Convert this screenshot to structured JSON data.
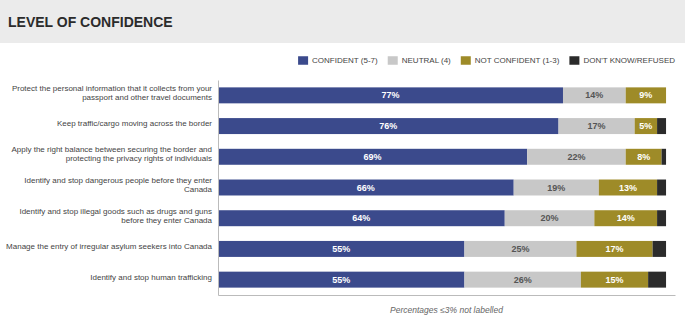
{
  "chart_data": {
    "type": "bar",
    "orientation": "horizontal",
    "stacked": true,
    "data_labels": true,
    "tick_labels": "y",
    "legend": "top-right",
    "title": "LEVEL OF CONFIDENCE",
    "categories": [
      "Protect the personal information  that it collects from your\npassport and other travel documents",
      "Keep traffic/cargo moving across the border",
      "Apply the right balance between securing the border and\nprotecting the privacy rights of individuals",
      "Identify and stop dangerous people before they enter\nCanada",
      "Identify and stop illegal goods such as drugs and guns\nbefore they enter Canada",
      "Manage the entry of irregular asylum seekers into Canada",
      "Identify and stop human trafficking"
    ],
    "series": [
      {
        "name": "CONFIDENT (5-7)",
        "color": "#3B4A8C",
        "values": [
          77,
          76,
          69,
          66,
          64,
          55,
          55
        ],
        "value_labels": [
          "77%",
          "76%",
          "69%",
          "66%",
          "64%",
          "55%",
          "55%"
        ]
      },
      {
        "name": "NEUTRAL (4)",
        "color": "#C8C8C8",
        "values": [
          14,
          17,
          22,
          19,
          20,
          25,
          26
        ],
        "value_labels": [
          "14%",
          "17%",
          "22%",
          "19%",
          "20%",
          "25%",
          "26%"
        ]
      },
      {
        "name": "NOT CONFIDENT (1-3)",
        "color": "#9E8B28",
        "values": [
          9,
          5,
          8,
          13,
          14,
          17,
          15
        ],
        "value_labels": [
          "9%",
          "5%",
          "8%",
          "13%",
          "14%",
          "17%",
          "15%"
        ]
      },
      {
        "name": "DON'T KNOW/REFUSED",
        "color": "#2B2B2B",
        "values": [
          0,
          2,
          1,
          2,
          2,
          3,
          4
        ]
      }
    ],
    "xlim": [
      0,
      102
    ],
    "annotations": [
      "Percentages ≤3% not labelled"
    ]
  }
}
